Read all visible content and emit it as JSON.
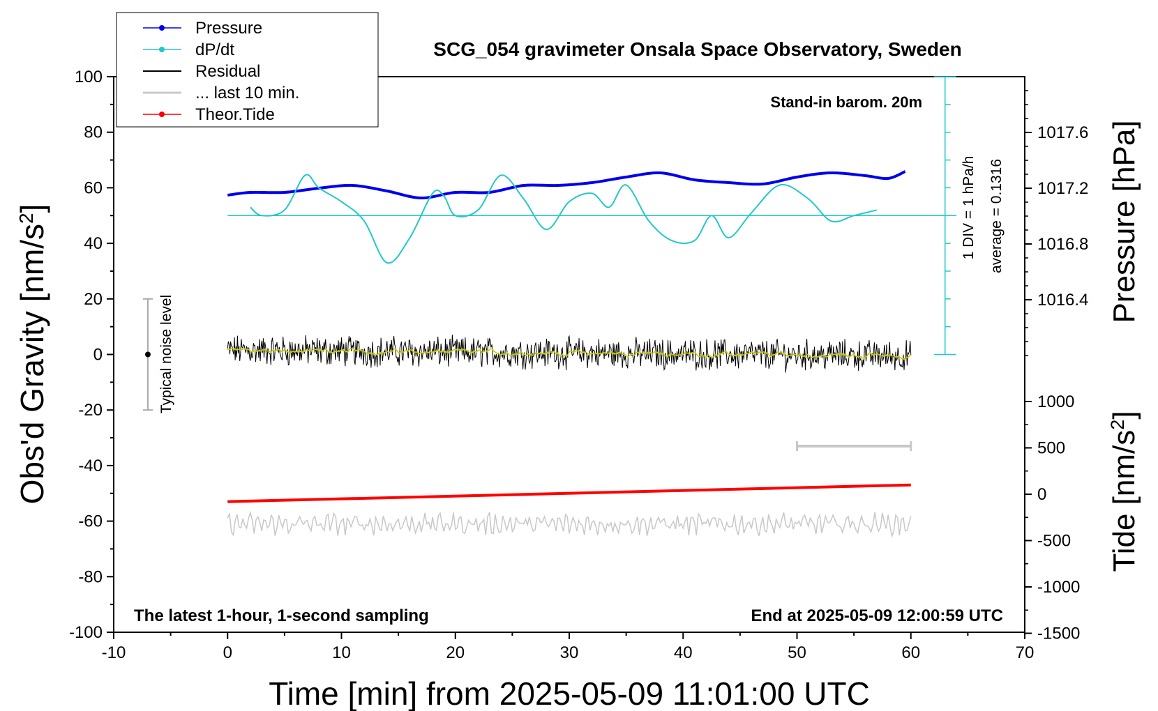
{
  "chart_data": {
    "type": "line",
    "title": "SCG_054 gravimeter Onsala Space Observatory, Sweden",
    "xlabel": "Time [min] from 2025-05-09 11:01:00 UTC",
    "ylabel_left": "Obs'd Gravity [nm/s",
    "ylabel_left_sup": "2",
    "ylabel_left_end": "]",
    "ylabel_right_pressure": "Pressure [hPa]",
    "ylabel_right_tide": "Tide [nm/s",
    "ylabel_right_tide_sup": "2",
    "ylabel_right_tide_end": "]",
    "xlim": [
      -10,
      70
    ],
    "ylim": [
      -100,
      100
    ],
    "x_ticks": [
      -10,
      0,
      10,
      20,
      30,
      40,
      50,
      60,
      70
    ],
    "y_ticks": [
      -100,
      -80,
      -60,
      -40,
      -20,
      0,
      20,
      40,
      60,
      80,
      100
    ],
    "pressure_ticks": [
      "1016.4",
      "1016.8",
      "1017.2",
      "1017.6"
    ],
    "pressure_tick_values": [
      1016.4,
      1016.8,
      1017.2,
      1017.6
    ],
    "tide_ticks": [
      "1000",
      "500",
      "0",
      "-500",
      "-1000",
      "-1500"
    ],
    "tide_tick_values": [
      1000,
      500,
      0,
      -500,
      -1000,
      -1500
    ],
    "legend": {
      "placement": "top-left",
      "entries": [
        "Pressure",
        "dP/dt",
        "Residual",
        "... last 10 min.",
        "Theor.Tide"
      ]
    },
    "annotations": {
      "barometer": "Stand-in barom. 20m",
      "div_label": "1 DIV = 1 hPa/h",
      "average_label": "average = 0.1316",
      "noise_label": "Typical noise level",
      "bottom_left": "The latest 1-hour, 1-second sampling",
      "bottom_right": "End at 2025-05-09 12:00:59 UTC"
    },
    "colors": {
      "pressure": "#0000ee",
      "dpdt": "#22c8c8",
      "residual": "#000000",
      "last10": "#c8c8c8",
      "tide": "#ff0000",
      "smooth_residual": "#c8c800"
    },
    "series": [
      {
        "name": "Pressure",
        "unit": "hPa",
        "x": [
          0,
          2,
          5,
          8,
          11,
          14,
          17,
          20,
          23,
          26,
          29,
          32,
          35,
          38,
          41,
          44,
          47,
          50,
          53,
          56,
          58,
          59.5
        ],
        "values": [
          1017.15,
          1017.17,
          1017.17,
          1017.2,
          1017.22,
          1017.18,
          1017.13,
          1017.17,
          1017.17,
          1017.22,
          1017.22,
          1017.24,
          1017.28,
          1017.31,
          1017.26,
          1017.24,
          1017.23,
          1017.28,
          1017.31,
          1017.29,
          1017.27,
          1017.32
        ]
      },
      {
        "name": "dP/dt",
        "x": [
          2,
          3,
          5,
          6.8,
          8,
          10,
          12,
          14,
          16,
          18,
          19,
          20,
          22,
          24,
          26,
          28,
          30,
          32,
          33.5,
          35,
          37,
          39,
          41,
          42.5,
          44,
          46,
          48.5,
          51,
          53,
          55,
          57
        ],
        "values": [
          53,
          50,
          52,
          64.5,
          60,
          55,
          48,
          33,
          42,
          58,
          57,
          50,
          52,
          64.5,
          56,
          45,
          55,
          58,
          53,
          61,
          48,
          41,
          41,
          50,
          42,
          51,
          61,
          56,
          48,
          50,
          52
        ]
      },
      {
        "name": "Residual",
        "x": [
          0,
          60
        ],
        "values": [
          1.5,
          -0.5
        ]
      },
      {
        "name": "... last 10 min.",
        "x": [
          50,
          60
        ],
        "values": [
          -33,
          -33
        ]
      },
      {
        "name": "Theor.Tide",
        "unit": "nm/s2",
        "x": [
          0,
          60
        ],
        "values": [
          -80,
          100
        ]
      }
    ],
    "dpdt_average_line": 50,
    "noise_bar": {
      "x": -7,
      "center": 0,
      "half_range": 20
    },
    "last10_gray_trace_level": -61
  }
}
